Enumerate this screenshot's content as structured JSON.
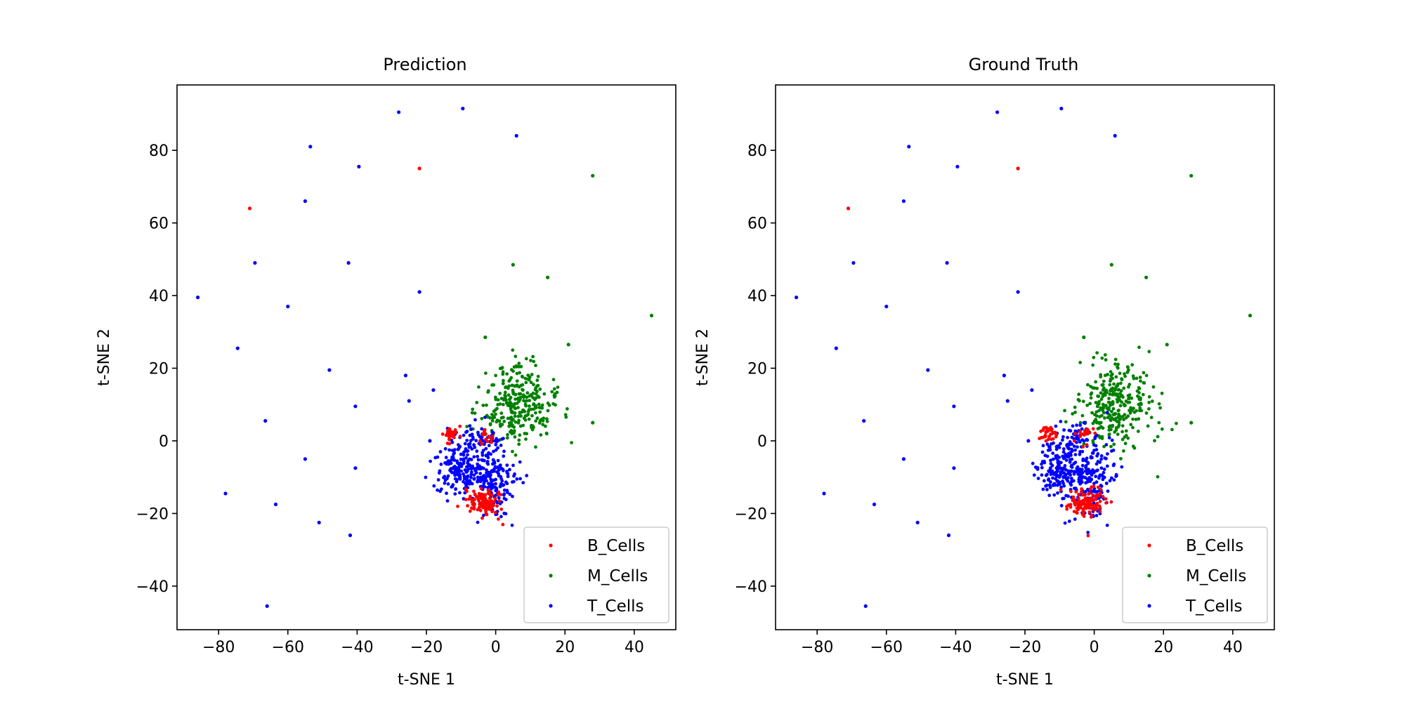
{
  "chart_data": [
    {
      "type": "scatter",
      "title": "Prediction",
      "xlabel": "t-SNE 1",
      "ylabel": "t-SNE 2",
      "xlim": [
        -92,
        52
      ],
      "ylim": [
        -52,
        98
      ],
      "xticks": [
        -80,
        -60,
        -40,
        -20,
        0,
        20,
        40
      ],
      "yticks": [
        -40,
        -20,
        0,
        20,
        40,
        60,
        80
      ],
      "xtick_labels": [
        "−80",
        "−60",
        "−40",
        "−20",
        "0",
        "20",
        "40"
      ],
      "ytick_labels": [
        "−40",
        "−20",
        "0",
        "20",
        "40",
        "60",
        "80"
      ],
      "grid": false,
      "legend_position": "lower-right",
      "series": [
        {
          "name": "B_Cells",
          "color": "#ff0000",
          "points": [
            [
              -71,
              64
            ],
            [
              -22,
              75
            ]
          ]
        },
        {
          "name": "M_Cells",
          "color": "#008000",
          "points": [
            [
              28,
              73
            ],
            [
              5,
              48.5
            ],
            [
              15,
              45
            ],
            [
              45,
              34.5
            ],
            [
              -3,
              28.5
            ],
            [
              21,
              26.5
            ],
            [
              28,
              5
            ]
          ]
        },
        {
          "name": "T_Cells",
          "color": "#0000ff",
          "points": [
            [
              -28,
              90.5
            ],
            [
              -9.5,
              91.5
            ],
            [
              6,
              84
            ],
            [
              -53.5,
              81
            ],
            [
              -39.5,
              75.5
            ],
            [
              -55,
              66
            ],
            [
              -69.5,
              49
            ],
            [
              -42.5,
              49
            ],
            [
              -86,
              39.5
            ],
            [
              -60,
              37
            ],
            [
              -22,
              41
            ],
            [
              -74.5,
              25.5
            ],
            [
              -48,
              19.5
            ],
            [
              -26,
              18
            ],
            [
              -25,
              11
            ],
            [
              -18,
              14
            ],
            [
              -40.5,
              9.5
            ],
            [
              -66.5,
              5.5
            ],
            [
              -19,
              0
            ],
            [
              -55,
              -5
            ],
            [
              -40.5,
              -7.5
            ],
            [
              -78,
              -14.5
            ],
            [
              -63.5,
              -17.5
            ],
            [
              -51,
              -22.5
            ],
            [
              -42,
              -26
            ],
            [
              -66,
              -45.5
            ]
          ]
        }
      ],
      "clusters": [
        {
          "series": "M_Cells",
          "cx": 6,
          "cy": 10,
          "sx": 5.5,
          "sy": 5.5,
          "n": 300
        },
        {
          "series": "T_Cells",
          "cx": -11,
          "cy": -8,
          "sx": 3.2,
          "sy": 3.5,
          "n": 150
        },
        {
          "series": "T_Cells",
          "cx": -1,
          "cy": -11,
          "sx": 3.5,
          "sy": 5,
          "n": 200
        },
        {
          "series": "T_Cells",
          "cx": -6,
          "cy": 0,
          "sx": 3.5,
          "sy": 2.5,
          "n": 60
        },
        {
          "series": "B_Cells",
          "cx": -3,
          "cy": -17,
          "sx": 2.5,
          "sy": 2,
          "n": 110
        },
        {
          "series": "B_Cells",
          "cx": -13,
          "cy": 2,
          "sx": 1.2,
          "sy": 1,
          "n": 30
        },
        {
          "series": "B_Cells",
          "cx": -3,
          "cy": 1.5,
          "sx": 1.5,
          "sy": 1.5,
          "n": 15
        }
      ]
    },
    {
      "type": "scatter",
      "title": "Ground Truth",
      "xlabel": "t-SNE 1",
      "ylabel": "t-SNE 2",
      "xlim": [
        -92,
        52
      ],
      "ylim": [
        -52,
        98
      ],
      "xticks": [
        -80,
        -60,
        -40,
        -20,
        0,
        20,
        40
      ],
      "yticks": [
        -40,
        -20,
        0,
        20,
        40,
        60,
        80
      ],
      "xtick_labels": [
        "−80",
        "−60",
        "−40",
        "−20",
        "0",
        "20",
        "40"
      ],
      "ytick_labels": [
        "−40",
        "−20",
        "0",
        "20",
        "40",
        "60",
        "80"
      ],
      "grid": false,
      "legend_position": "lower-right",
      "series": [
        {
          "name": "B_Cells",
          "color": "#ff0000",
          "points": [
            [
              -71,
              64
            ],
            [
              -22,
              75
            ]
          ]
        },
        {
          "name": "M_Cells",
          "color": "#008000",
          "points": [
            [
              28,
              73
            ],
            [
              5,
              48.5
            ],
            [
              15,
              45
            ],
            [
              45,
              34.5
            ],
            [
              -3,
              28.5
            ],
            [
              21,
              26.5
            ],
            [
              28,
              5
            ]
          ]
        },
        {
          "name": "T_Cells",
          "color": "#0000ff",
          "points": [
            [
              -28,
              90.5
            ],
            [
              -9.5,
              91.5
            ],
            [
              6,
              84
            ],
            [
              -53.5,
              81
            ],
            [
              -39.5,
              75.5
            ],
            [
              -55,
              66
            ],
            [
              -69.5,
              49
            ],
            [
              -42.5,
              49
            ],
            [
              -86,
              39.5
            ],
            [
              -60,
              37
            ],
            [
              -22,
              41
            ],
            [
              -74.5,
              25.5
            ],
            [
              -48,
              19.5
            ],
            [
              -26,
              18
            ],
            [
              -25,
              11
            ],
            [
              -18,
              14
            ],
            [
              -40.5,
              9.5
            ],
            [
              -66.5,
              5.5
            ],
            [
              -19,
              0
            ],
            [
              -55,
              -5
            ],
            [
              -40.5,
              -7.5
            ],
            [
              -78,
              -14.5
            ],
            [
              -63.5,
              -17.5
            ],
            [
              -51,
              -22.5
            ],
            [
              -42,
              -26
            ],
            [
              -66,
              -45.5
            ]
          ]
        }
      ],
      "clusters": [
        {
          "series": "M_Cells",
          "cx": 6,
          "cy": 10,
          "sx": 5.5,
          "sy": 5.5,
          "n": 300
        },
        {
          "series": "T_Cells",
          "cx": -11,
          "cy": -8,
          "sx": 3.2,
          "sy": 3.5,
          "n": 150
        },
        {
          "series": "T_Cells",
          "cx": -1,
          "cy": -11,
          "sx": 3.5,
          "sy": 5,
          "n": 200
        },
        {
          "series": "T_Cells",
          "cx": -6,
          "cy": 0,
          "sx": 3.5,
          "sy": 2.5,
          "n": 60
        },
        {
          "series": "B_Cells",
          "cx": -3,
          "cy": -17,
          "sx": 2.5,
          "sy": 2,
          "n": 120
        },
        {
          "series": "B_Cells",
          "cx": -13,
          "cy": 2,
          "sx": 1.2,
          "sy": 1,
          "n": 30
        },
        {
          "series": "B_Cells",
          "cx": -3,
          "cy": 2,
          "sx": 1.5,
          "sy": 1.5,
          "n": 20
        }
      ]
    }
  ]
}
